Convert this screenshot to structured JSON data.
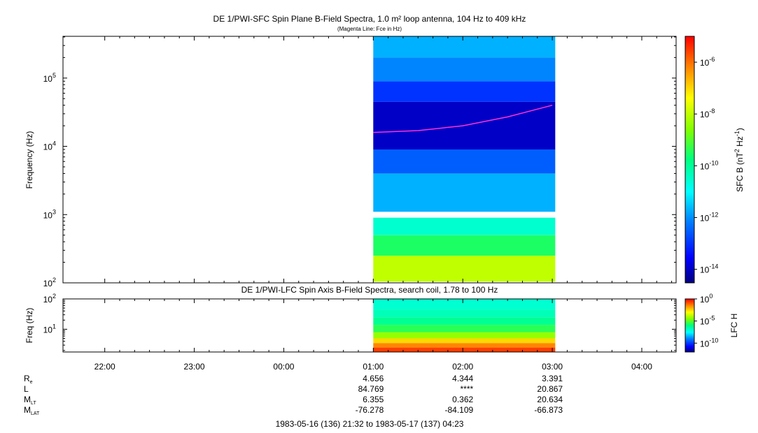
{
  "chart_data": [
    {
      "type": "heatmap",
      "title": "DE 1/PWI-SFC  Spin Plane B-Field Spectra, 1.0 m² loop antenna, 104 Hz to 409 kHz",
      "subtitle": "(Magenta Line: Fce in Hz)",
      "ylabel": "Frequency (Hz)",
      "yscale": "log",
      "ylim": [
        100,
        409000
      ],
      "y_ticks": [
        {
          "value": 100,
          "label": "10",
          "exp": "2"
        },
        {
          "value": 1000,
          "label": "10",
          "exp": "3"
        },
        {
          "value": 10000,
          "label": "10",
          "exp": "4"
        },
        {
          "value": 100000,
          "label": "10",
          "exp": "5"
        }
      ],
      "colorbar": {
        "label": "SFC B (nT",
        "label_exp1": "2",
        "label_mid": " Hz",
        "label_exp2": "-1",
        "label_end": ")",
        "scale": "log",
        "range": [
          3e-15,
          1e-05
        ],
        "ticks": [
          {
            "value": 1e-06,
            "label": "10",
            "exp": "-6"
          },
          {
            "value": 1e-08,
            "label": "10",
            "exp": "-8"
          },
          {
            "value": 1e-10,
            "label": "10",
            "exp": "-10"
          },
          {
            "value": 1e-12,
            "label": "10",
            "exp": "-12"
          },
          {
            "value": 1e-14,
            "label": "10",
            "exp": "-14"
          }
        ]
      },
      "data_coverage": {
        "start": "01:00",
        "end": "03:02"
      },
      "overlay_series": {
        "name": "Fce",
        "color": "#ff33cc",
        "x": [
          "01:00",
          "01:30",
          "02:00",
          "02:30",
          "03:00"
        ],
        "y": [
          16000,
          17000,
          20000,
          27000,
          40000
        ]
      },
      "spectral_bands": [
        {
          "f_low": 104,
          "f_high": 250,
          "level": 1e-08
        },
        {
          "f_low": 250,
          "f_high": 500,
          "level": 3e-10
        },
        {
          "f_low": 500,
          "f_high": 900,
          "level": 3e-11
        },
        {
          "f_low": 1100,
          "f_high": 4000,
          "level": 2e-12
        },
        {
          "f_low": 4000,
          "f_high": 9000,
          "level": 3e-13
        },
        {
          "f_low": 9000,
          "f_high": 45000,
          "level": 1e-14
        },
        {
          "f_low": 45000,
          "f_high": 90000,
          "level": 1e-13
        },
        {
          "f_low": 90000,
          "f_high": 200000,
          "level": 8e-13
        },
        {
          "f_low": 200000,
          "f_high": 409000,
          "level": 2e-12
        }
      ]
    },
    {
      "type": "heatmap",
      "title": "DE 1/PWI-LFC  Spin Axis B-Field Spectra, search coil, 1.78 to 100 Hz",
      "ylabel": "Freq (Hz)",
      "yscale": "log",
      "ylim": [
        1.78,
        100
      ],
      "y_ticks": [
        {
          "value": 100,
          "label": "10",
          "exp": "2"
        },
        {
          "value": 10,
          "label": "10",
          "exp": "1"
        }
      ],
      "colorbar": {
        "label": "LFC H",
        "scale": "log",
        "range": [
          1e-12,
          1
        ],
        "ticks": [
          {
            "value": 1,
            "label": "10",
            "exp": "0"
          },
          {
            "value": 1e-05,
            "label": "10",
            "exp": "-5"
          },
          {
            "value": 1e-10,
            "label": "10",
            "exp": "-10"
          }
        ]
      },
      "data_coverage": {
        "start": "01:00",
        "end": "03:02"
      },
      "spectral_bands": [
        {
          "f_low": 1.78,
          "f_high": 2.5,
          "level": 0.2
        },
        {
          "f_low": 2.5,
          "f_high": 3.5,
          "level": 0.03
        },
        {
          "f_low": 3.5,
          "f_high": 5,
          "level": 0.003
        },
        {
          "f_low": 5,
          "f_high": 8,
          "level": 5e-05
        },
        {
          "f_low": 8,
          "f_high": 14,
          "level": 3e-06
        },
        {
          "f_low": 14,
          "f_high": 25,
          "level": 6e-07
        },
        {
          "f_low": 25,
          "f_high": 45,
          "level": 2e-07
        },
        {
          "f_low": 45,
          "f_high": 100,
          "level": 1e-07
        }
      ]
    }
  ],
  "x_axis": {
    "range": [
      "21:32",
      "04:23"
    ],
    "ticks": [
      "22:00",
      "23:00",
      "00:00",
      "01:00",
      "02:00",
      "03:00",
      "04:00"
    ]
  },
  "ephemeris": {
    "rows": [
      {
        "label": "R",
        "sub": "e",
        "values": [
          "4.656",
          "4.344",
          "3.391"
        ]
      },
      {
        "label": "L",
        "sub": "",
        "values": [
          "84.769",
          "****",
          "20.867"
        ]
      },
      {
        "label": "M",
        "sub": "LT",
        "values": [
          "6.355",
          "0.362",
          "20.634"
        ]
      },
      {
        "label": "M",
        "sub": "LAT",
        "values": [
          "-76.278",
          "-84.109",
          "-66.873"
        ]
      }
    ],
    "times": [
      "01:00",
      "02:00",
      "03:00"
    ]
  },
  "time_range_text": "1983-05-16 (136) 21:32 to 1983-05-17 (137) 04:23"
}
